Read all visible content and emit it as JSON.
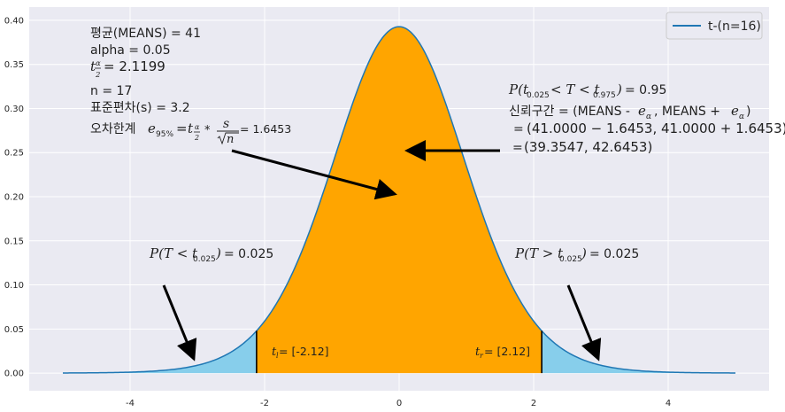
{
  "chart_data": {
    "type": "area",
    "distribution": "t",
    "df": 16,
    "x_range": [
      -5,
      5
    ],
    "xlim": [
      -5.5,
      5.5
    ],
    "ylim": [
      -0.02,
      0.415
    ],
    "x_ticks": [
      -4,
      -2,
      0,
      2,
      4
    ],
    "x_tick_labels": [
      "-4",
      "-2",
      "0",
      "2",
      "4"
    ],
    "y_ticks": [
      0.0,
      0.05,
      0.1,
      0.15,
      0.2,
      0.25,
      0.3,
      0.35,
      0.4
    ],
    "y_tick_labels": [
      "0.00",
      "0.05",
      "0.10",
      "0.15",
      "0.20",
      "0.25",
      "0.30",
      "0.35",
      "0.40"
    ],
    "critical_left": -2.12,
    "critical_right": 2.12,
    "grid": true,
    "legend_position": "top-right",
    "series": [
      {
        "name": "t-(n=16)",
        "color": "#1f77b4"
      }
    ],
    "regions": [
      {
        "name": "center",
        "from": -2.12,
        "to": 2.12,
        "color": "#ffa500",
        "probability": 0.95
      },
      {
        "name": "left-tail",
        "from": -5,
        "to": -2.12,
        "color": "#87ceeb",
        "probability": 0.025
      },
      {
        "name": "right-tail",
        "from": 2.12,
        "to": 5,
        "color": "#87ceeb",
        "probability": 0.025
      }
    ],
    "annotations": {
      "stats": {
        "means": "평균(MEANS) = 41",
        "alpha": " alpha = 0.05",
        "t_value": "= 2.1199",
        "n": " n = 17",
        "std": " 표준편차(s) = 3.2",
        "margin_prefix": "오차한계",
        "margin_value": "= 1.6453"
      },
      "ci": {
        "prob_value": "= 0.95",
        "line2_prefix": "신뢰구간 = (MEANS -",
        "line2_mid": ", MEANS +",
        "line2_end": ")",
        "line3_eq": "=",
        "line3": "(41.0000 − 1.6453, 41.0000 + 1.6453)",
        "line4_eq": "=",
        "line4": "(39.3547, 42.6453)"
      },
      "left_tail_label": "= 0.025",
      "right_tail_label": "= 0.025",
      "tl_value": "= [-2.12]",
      "tr_value": "= [2.12]"
    }
  }
}
